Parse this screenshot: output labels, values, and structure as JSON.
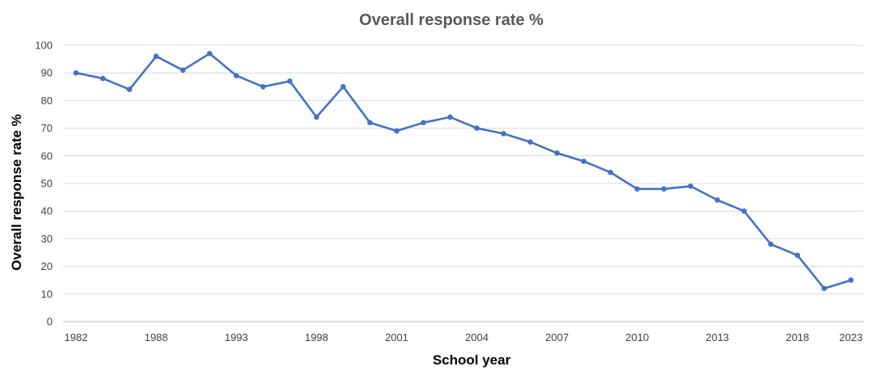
{
  "chart_data": {
    "type": "line",
    "title": "Overall response rate %",
    "xlabel": "School year",
    "ylabel": "Overall response rate %",
    "ylim": [
      0,
      100
    ],
    "yticks": [
      0,
      10,
      20,
      30,
      40,
      50,
      60,
      70,
      80,
      90,
      100
    ],
    "grid": true,
    "legend": "none",
    "colors": {
      "series": "#4472c4"
    },
    "x_tick_labels": [
      "1982",
      "1988",
      "1993",
      "1998",
      "2001",
      "2004",
      "2007",
      "2010",
      "2013",
      "2018",
      "2023"
    ],
    "x_tick_label_point_index": [
      0,
      3,
      6,
      9,
      12,
      15,
      18,
      21,
      24,
      27,
      29
    ],
    "series": [
      {
        "values": [
          90,
          88,
          84,
          96,
          91,
          97,
          89,
          85,
          87,
          74,
          85,
          72,
          69,
          72,
          74,
          70,
          68,
          65,
          61,
          58,
          54,
          48,
          48,
          49,
          44,
          40,
          28,
          24,
          12,
          15
        ]
      }
    ]
  }
}
